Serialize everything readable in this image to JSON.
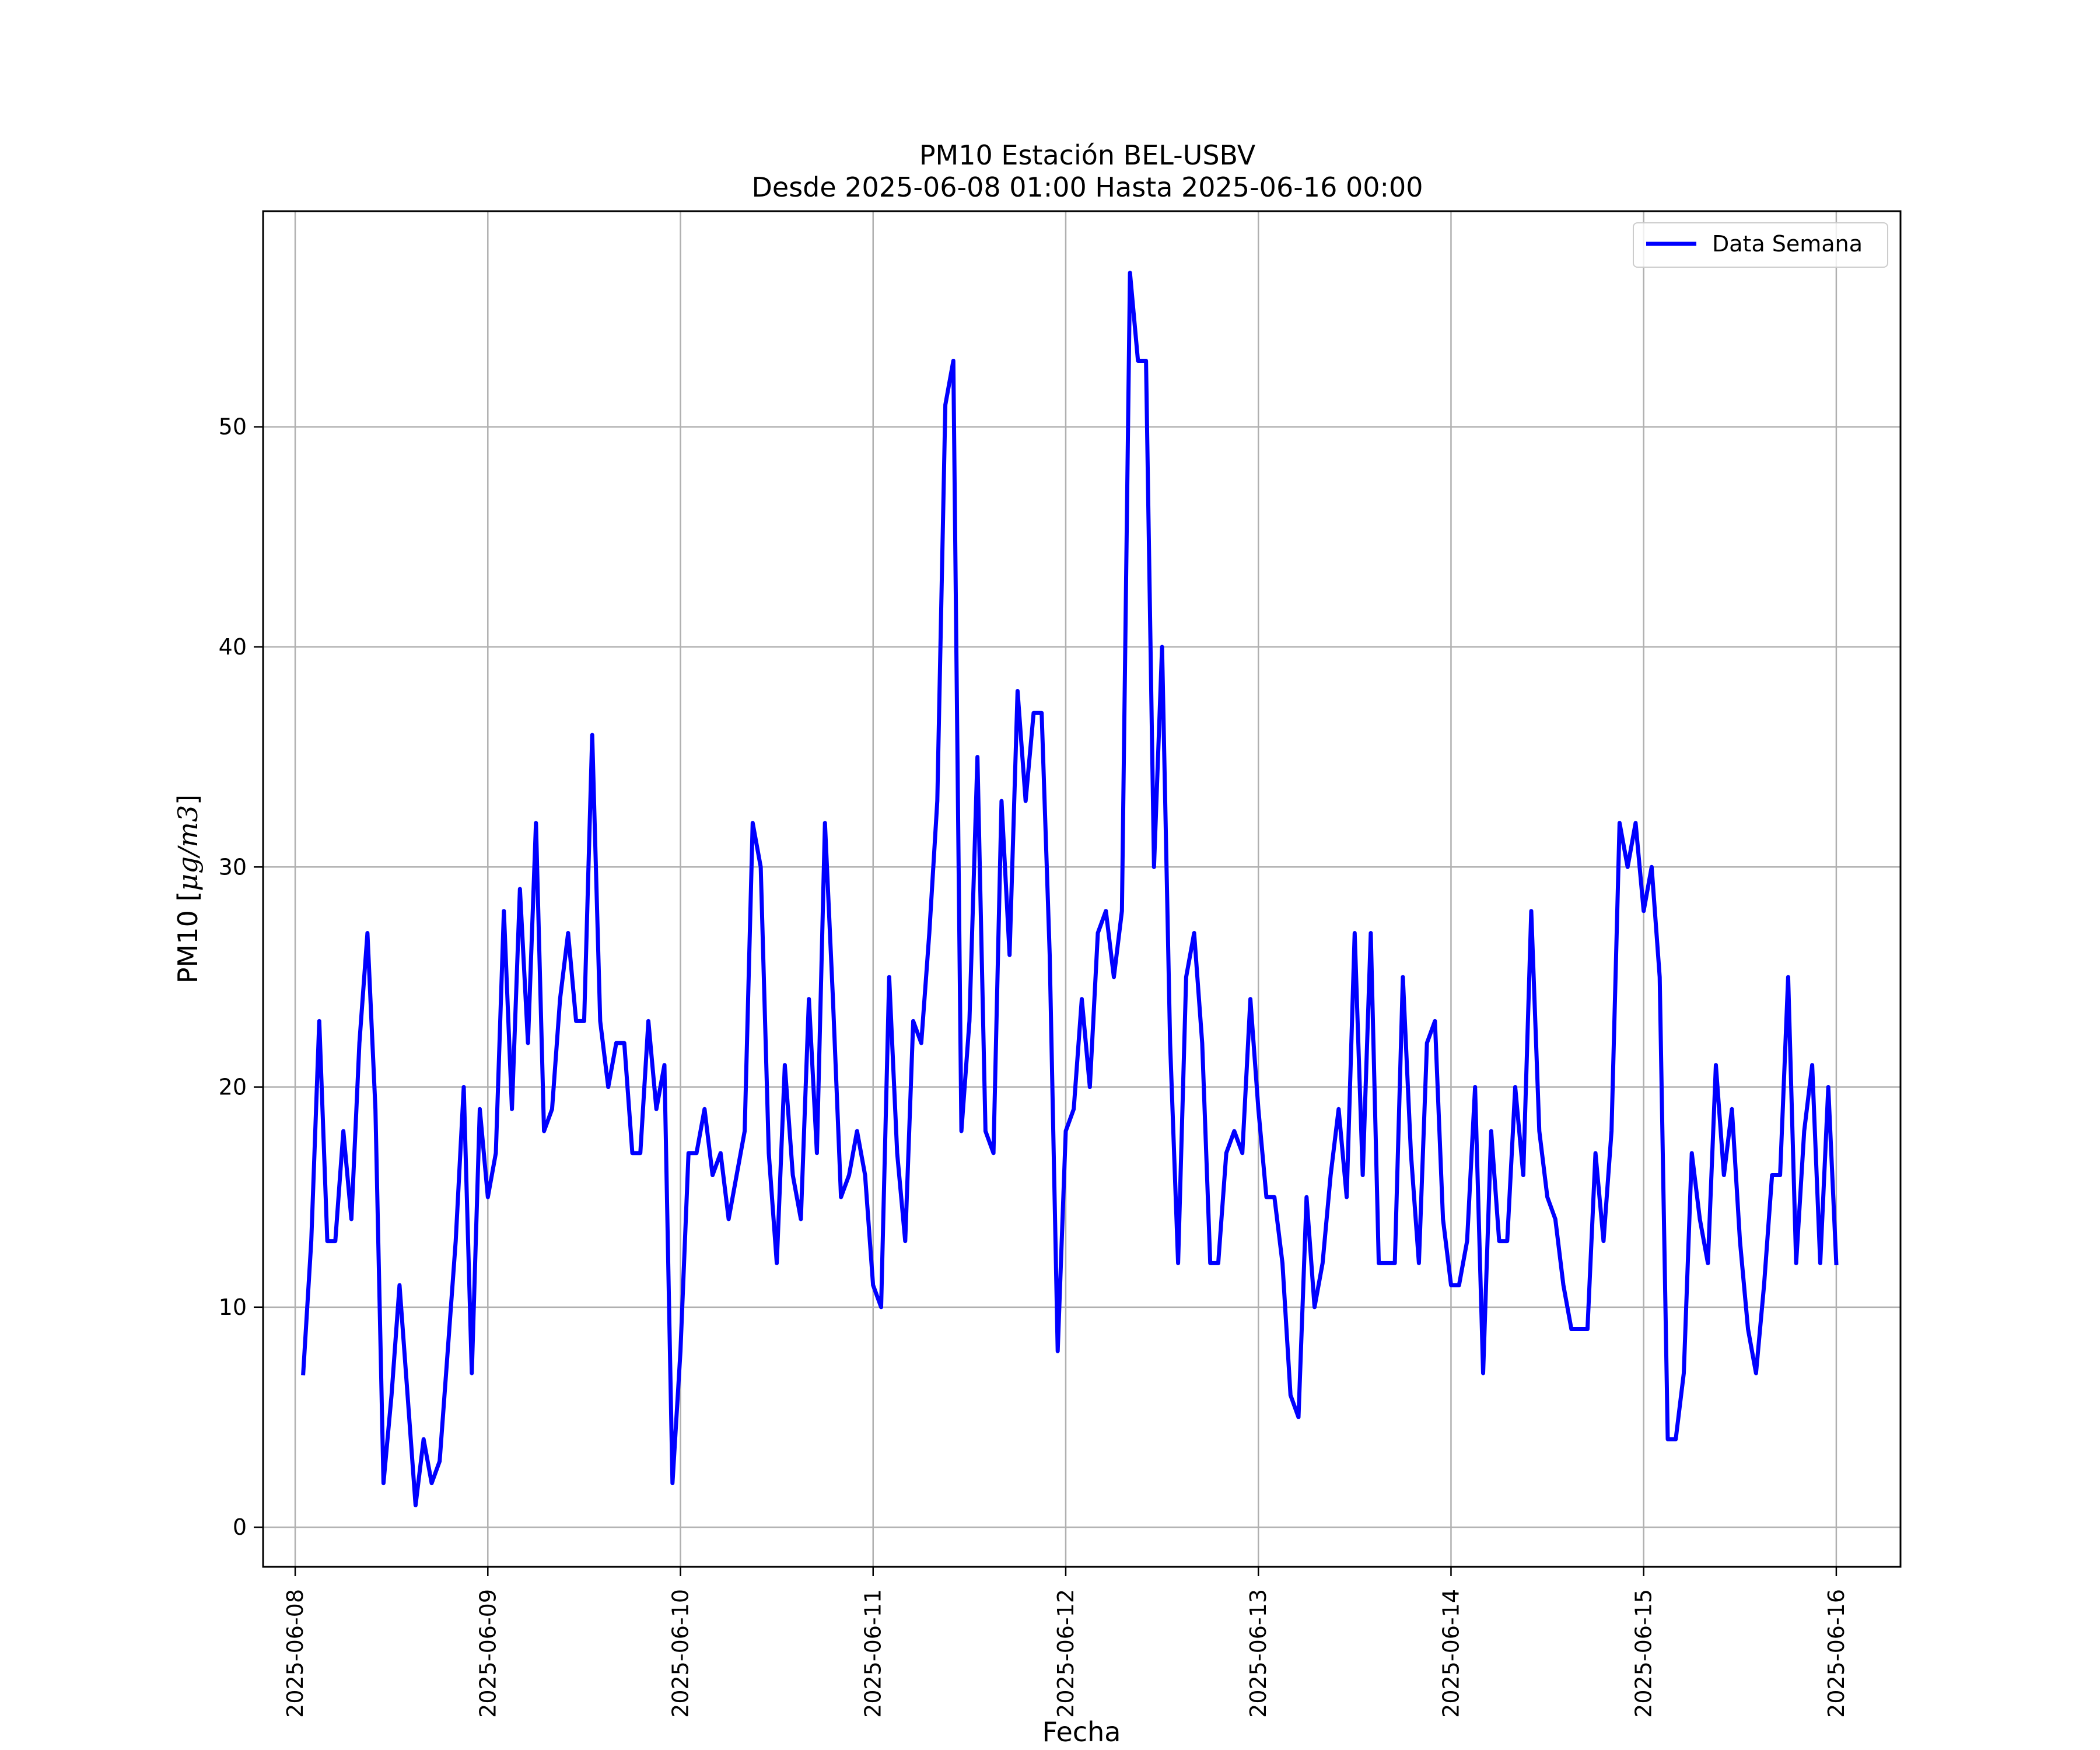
{
  "chart_data": {
    "type": "line",
    "title": "PM10 Estación BEL-USBV",
    "subtitle": "Desde 2025-06-08 01:00 Hasta 2025-06-16 00:00",
    "xlabel": "Fecha",
    "ylabel_text": "PM10 [",
    "ylabel_unit": "μg/m3",
    "ylabel_close": "]",
    "x_ticks": [
      "2025-06-08",
      "2025-06-09",
      "2025-06-10",
      "2025-06-11",
      "2025-06-12",
      "2025-06-13",
      "2025-06-14",
      "2025-06-15",
      "2025-06-16"
    ],
    "y_ticks": [
      "0",
      "10",
      "20",
      "30",
      "40",
      "50"
    ],
    "xlim": [
      "2025-06-07 20:00",
      "2025-06-16 08:00"
    ],
    "ylim": [
      -1.8,
      59.8
    ],
    "grid": true,
    "legend_position": "top-right",
    "series": [
      {
        "name": "Data Semana",
        "color": "#0000ff",
        "start": "2025-06-08 01:00",
        "interval": "1 hour",
        "values": [
          7,
          13,
          23,
          13,
          13,
          18,
          14,
          22,
          27,
          19,
          2,
          6,
          11,
          6,
          1,
          4,
          2,
          3,
          8,
          13,
          20,
          7,
          19,
          15,
          17,
          28,
          19,
          29,
          22,
          32,
          18,
          19,
          24,
          27,
          23,
          23,
          36,
          23,
          20,
          22,
          22,
          17,
          17,
          23,
          19,
          21,
          2,
          8,
          17,
          17,
          19,
          16,
          17,
          14,
          16,
          18,
          32,
          30,
          17,
          12,
          21,
          16,
          14,
          24,
          17,
          32,
          24,
          15,
          16,
          18,
          16,
          11,
          10,
          25,
          17,
          13,
          23,
          22,
          27,
          33,
          51,
          53,
          18,
          23,
          35,
          18,
          17,
          33,
          26,
          38,
          33,
          37,
          37,
          26,
          8,
          18,
          19,
          24,
          20,
          27,
          28,
          25,
          28,
          57,
          53,
          53,
          30,
          40,
          22,
          12,
          25,
          27,
          22,
          12,
          12,
          17,
          18,
          17,
          24,
          19,
          15,
          15,
          12,
          6,
          5,
          15,
          10,
          12,
          16,
          19,
          15,
          27,
          16,
          27,
          12,
          12,
          12,
          25,
          17,
          12,
          22,
          23,
          14,
          11,
          11,
          13,
          20,
          7,
          18,
          13,
          13,
          20,
          16,
          28,
          18,
          15,
          14,
          11,
          9,
          9,
          9,
          17,
          13,
          18,
          32,
          30,
          32,
          28,
          30,
          25,
          4,
          4,
          7,
          17,
          14,
          12,
          21,
          16,
          19,
          13,
          9,
          7,
          11,
          16,
          16,
          25,
          12,
          18,
          21,
          12,
          20,
          12
        ]
      }
    ]
  }
}
